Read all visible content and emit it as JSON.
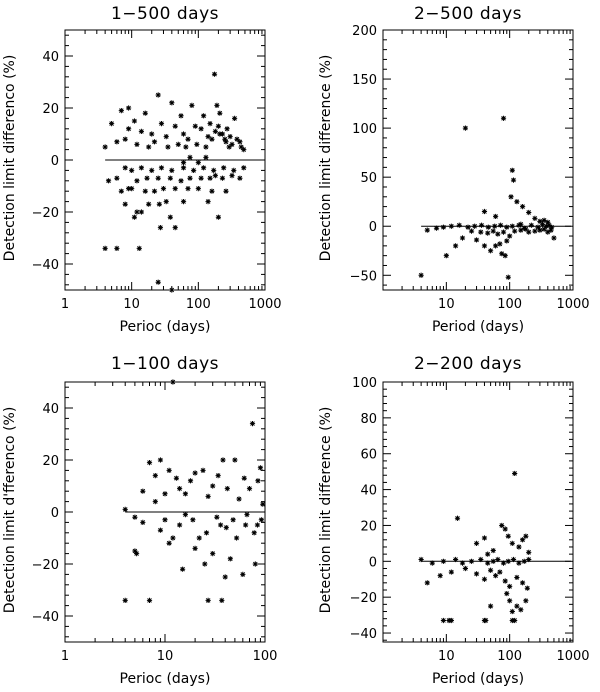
{
  "chart_data": [
    {
      "type": "scatter",
      "title": "1−500 days",
      "xlabel": "Perioc (days)",
      "ylabel": "Detection limit differenco (%)",
      "xscale": "log",
      "xlim": [
        1,
        1000
      ],
      "ylim": [
        -50,
        50
      ],
      "xticks": [
        1,
        10,
        100,
        1000
      ],
      "xtick_labels": [
        "1",
        "10",
        "100",
        "1000"
      ],
      "yticks": [
        -40,
        -20,
        0,
        20,
        40
      ],
      "ytick_labels": [
        "−40",
        "−20",
        "0",
        "20",
        "40"
      ],
      "points": [
        [
          4,
          -34
        ],
        [
          6,
          -34
        ],
        [
          13,
          -34
        ],
        [
          25,
          -47
        ],
        [
          40,
          -50
        ],
        [
          27,
          -26
        ],
        [
          38,
          -22
        ],
        [
          45,
          -26
        ],
        [
          200,
          -22
        ],
        [
          11,
          -22
        ],
        [
          12,
          -20
        ],
        [
          14,
          -20
        ],
        [
          8,
          -17
        ],
        [
          18,
          -17
        ],
        [
          26,
          -17
        ],
        [
          33,
          -16
        ],
        [
          60,
          -16
        ],
        [
          140,
          -16
        ],
        [
          7,
          -12
        ],
        [
          9,
          -11
        ],
        [
          10,
          -11
        ],
        [
          16,
          -12
        ],
        [
          22,
          -12
        ],
        [
          30,
          -11
        ],
        [
          45,
          -11
        ],
        [
          70,
          -11
        ],
        [
          100,
          -11
        ],
        [
          160,
          -12
        ],
        [
          260,
          -12
        ],
        [
          4.5,
          -8
        ],
        [
          6,
          -7
        ],
        [
          12,
          -8
        ],
        [
          17,
          -7
        ],
        [
          25,
          -7
        ],
        [
          38,
          -7
        ],
        [
          55,
          -8
        ],
        [
          75,
          -7
        ],
        [
          110,
          -7
        ],
        [
          150,
          -7
        ],
        [
          180,
          -6
        ],
        [
          230,
          -7
        ],
        [
          320,
          -6
        ],
        [
          420,
          -7
        ],
        [
          8,
          -3
        ],
        [
          10,
          -4
        ],
        [
          14,
          -3
        ],
        [
          20,
          -4
        ],
        [
          28,
          -3
        ],
        [
          40,
          -4
        ],
        [
          60,
          -3
        ],
        [
          85,
          -4
        ],
        [
          120,
          -3
        ],
        [
          170,
          -4
        ],
        [
          240,
          -3
        ],
        [
          340,
          -4
        ],
        [
          480,
          -3
        ],
        [
          4,
          5
        ],
        [
          6,
          7
        ],
        [
          8,
          8
        ],
        [
          9,
          12
        ],
        [
          11,
          15
        ],
        [
          14,
          11
        ],
        [
          16,
          18
        ],
        [
          20,
          10
        ],
        [
          25,
          25
        ],
        [
          28,
          14
        ],
        [
          33,
          9
        ],
        [
          40,
          22
        ],
        [
          45,
          13
        ],
        [
          55,
          17
        ],
        [
          60,
          10
        ],
        [
          70,
          8
        ],
        [
          80,
          21
        ],
        [
          90,
          13
        ],
        [
          110,
          12
        ],
        [
          120,
          17
        ],
        [
          140,
          9
        ],
        [
          150,
          14
        ],
        [
          160,
          8
        ],
        [
          180,
          11
        ],
        [
          190,
          21
        ],
        [
          200,
          13
        ],
        [
          210,
          18
        ],
        [
          230,
          10
        ],
        [
          250,
          8
        ],
        [
          270,
          12
        ],
        [
          300,
          9
        ],
        [
          350,
          16
        ],
        [
          420,
          7
        ],
        [
          480,
          4
        ],
        [
          5,
          14
        ],
        [
          7,
          19
        ],
        [
          9,
          20
        ],
        [
          12,
          6
        ],
        [
          18,
          5
        ],
        [
          22,
          7
        ],
        [
          35,
          5
        ],
        [
          50,
          6
        ],
        [
          65,
          5
        ],
        [
          95,
          6
        ],
        [
          130,
          5
        ],
        [
          175,
          33
        ],
        [
          210,
          10
        ],
        [
          260,
          7
        ],
        [
          290,
          5
        ],
        [
          320,
          6
        ],
        [
          380,
          8
        ],
        [
          440,
          5
        ],
        [
          60,
          -1
        ],
        [
          75,
          1
        ],
        [
          100,
          -1
        ],
        [
          130,
          1
        ]
      ]
    },
    {
      "type": "scatter",
      "title": "2−500 days",
      "xlabel": "Period (days)",
      "ylabel": "Detection limit difference (%)",
      "xscale": "log",
      "xlim": [
        1,
        1000
      ],
      "ylim": [
        -65,
        200
      ],
      "xticks": [
        10,
        100,
        1000
      ],
      "xtick_labels": [
        "10",
        "100",
        "1000"
      ],
      "yticks": [
        -50,
        0,
        50,
        100,
        150,
        200
      ],
      "ytick_labels": [
        "−50",
        "0",
        "50",
        "100",
        "150",
        "200"
      ],
      "points": [
        [
          4,
          -50
        ],
        [
          20,
          100
        ],
        [
          80,
          110
        ],
        [
          110,
          57
        ],
        [
          115,
          47
        ],
        [
          105,
          30
        ],
        [
          60,
          10
        ],
        [
          40,
          15
        ],
        [
          90,
          -15
        ],
        [
          100,
          -10
        ],
        [
          95,
          -52
        ],
        [
          85,
          -30
        ],
        [
          75,
          -28
        ],
        [
          50,
          -25
        ],
        [
          60,
          -20
        ],
        [
          70,
          -18
        ],
        [
          40,
          -20
        ],
        [
          30,
          -14
        ],
        [
          10,
          -30
        ],
        [
          14,
          -20
        ],
        [
          18,
          -12
        ],
        [
          25,
          -5
        ],
        [
          35,
          -6
        ],
        [
          45,
          -7
        ],
        [
          55,
          -5
        ],
        [
          65,
          -8
        ],
        [
          80,
          -6
        ],
        [
          120,
          -5
        ],
        [
          150,
          -4
        ],
        [
          180,
          -3
        ],
        [
          200,
          -6
        ],
        [
          250,
          -5
        ],
        [
          300,
          -4
        ],
        [
          350,
          -3
        ],
        [
          400,
          -6
        ],
        [
          450,
          -4
        ],
        [
          500,
          -12
        ],
        [
          130,
          25
        ],
        [
          160,
          20
        ],
        [
          200,
          14
        ],
        [
          250,
          8
        ],
        [
          300,
          5
        ],
        [
          350,
          6
        ],
        [
          400,
          4
        ],
        [
          150,
          2
        ],
        [
          170,
          -2
        ],
        [
          220,
          1
        ],
        [
          280,
          -1
        ],
        [
          330,
          2
        ],
        [
          380,
          0
        ],
        [
          420,
          1
        ],
        [
          460,
          -1
        ],
        [
          5,
          -4
        ],
        [
          7,
          -2
        ],
        [
          9,
          -1
        ],
        [
          12,
          0
        ],
        [
          16,
          1
        ],
        [
          22,
          -1
        ],
        [
          28,
          0
        ],
        [
          36,
          1
        ],
        [
          46,
          -1
        ],
        [
          58,
          0
        ],
        [
          72,
          1
        ],
        [
          90,
          -1
        ],
        [
          110,
          0
        ],
        [
          140,
          1
        ]
      ]
    },
    {
      "type": "scatter",
      "title": "1−100 days",
      "xlabel": "Perioc (days)",
      "ylabel": "Detection limit d'fferenco (%)",
      "xscale": "log",
      "xlim": [
        1,
        100
      ],
      "ylim": [
        -50,
        50
      ],
      "xticks": [
        1,
        10,
        100
      ],
      "xtick_labels": [
        "1",
        "10",
        "100"
      ],
      "yticks": [
        -40,
        -20,
        0,
        20,
        40
      ],
      "ytick_labels": [
        "−40",
        "−20",
        "0",
        "20",
        "40"
      ],
      "points": [
        [
          4,
          -34
        ],
        [
          7,
          -34
        ],
        [
          27,
          -34
        ],
        [
          37,
          -34
        ],
        [
          5,
          -15
        ],
        [
          5.2,
          -16
        ],
        [
          15,
          -22
        ],
        [
          25,
          -20
        ],
        [
          40,
          -25
        ],
        [
          60,
          -24
        ],
        [
          80,
          -20
        ],
        [
          45,
          -18
        ],
        [
          30,
          -16
        ],
        [
          20,
          -14
        ],
        [
          12,
          -10
        ],
        [
          9,
          -7
        ],
        [
          6,
          -4
        ],
        [
          5,
          -2
        ],
        [
          4,
          1
        ],
        [
          8,
          4
        ],
        [
          10,
          7
        ],
        [
          14,
          9
        ],
        [
          18,
          12
        ],
        [
          24,
          16
        ],
        [
          30,
          10
        ],
        [
          38,
          20
        ],
        [
          50,
          20
        ],
        [
          62,
          13
        ],
        [
          75,
          34
        ],
        [
          90,
          17
        ],
        [
          95,
          3
        ],
        [
          6,
          8
        ],
        [
          8,
          14
        ],
        [
          7,
          19
        ],
        [
          9,
          20
        ],
        [
          11,
          16
        ],
        [
          13,
          13
        ],
        [
          16,
          7
        ],
        [
          20,
          15
        ],
        [
          27,
          6
        ],
        [
          34,
          14
        ],
        [
          42,
          9
        ],
        [
          55,
          5
        ],
        [
          70,
          9
        ],
        [
          85,
          12
        ],
        [
          11,
          -12
        ],
        [
          14,
          -5
        ],
        [
          19,
          -3
        ],
        [
          26,
          -8
        ],
        [
          33,
          -2
        ],
        [
          41,
          -6
        ],
        [
          52,
          -10
        ],
        [
          64,
          -5
        ],
        [
          78,
          -8
        ],
        [
          92,
          -3
        ],
        [
          12,
          50
        ],
        [
          10,
          -3
        ],
        [
          16,
          -1
        ],
        [
          22,
          -10
        ],
        [
          36,
          -5
        ],
        [
          48,
          -3
        ],
        [
          66,
          -1
        ],
        [
          84,
          -5
        ]
      ]
    },
    {
      "type": "scatter",
      "title": "2−200 days",
      "xlabel": "Period (days)",
      "ylabel": "Detection limit difference (%)",
      "xscale": "log",
      "xlim": [
        1,
        1000
      ],
      "ylim": [
        -45,
        100
      ],
      "xticks": [
        10,
        100,
        1000
      ],
      "xtick_labels": [
        "10",
        "100",
        "1000"
      ],
      "yticks": [
        -40,
        -20,
        0,
        20,
        40,
        60,
        80,
        100
      ],
      "ytick_labels": [
        "−40",
        "−20",
        "0",
        "20",
        "40",
        "60",
        "80",
        "100"
      ],
      "points": [
        [
          9,
          -33
        ],
        [
          11,
          -33
        ],
        [
          12,
          -33
        ],
        [
          40,
          -33
        ],
        [
          42,
          -33
        ],
        [
          110,
          -33
        ],
        [
          120,
          -33
        ],
        [
          50,
          -25
        ],
        [
          90,
          -18
        ],
        [
          100,
          -22
        ],
        [
          110,
          -28
        ],
        [
          130,
          -25
        ],
        [
          150,
          -27
        ],
        [
          180,
          -22
        ],
        [
          5,
          -12
        ],
        [
          8,
          -8
        ],
        [
          12,
          -6
        ],
        [
          20,
          -4
        ],
        [
          30,
          -7
        ],
        [
          40,
          -10
        ],
        [
          50,
          -5
        ],
        [
          60,
          -8
        ],
        [
          70,
          -6
        ],
        [
          85,
          -11
        ],
        [
          100,
          -14
        ],
        [
          130,
          -9
        ],
        [
          160,
          -12
        ],
        [
          190,
          -15
        ],
        [
          4,
          1
        ],
        [
          6,
          -1
        ],
        [
          9,
          0
        ],
        [
          14,
          1
        ],
        [
          18,
          -1
        ],
        [
          25,
          0
        ],
        [
          35,
          1
        ],
        [
          45,
          -1
        ],
        [
          55,
          0
        ],
        [
          65,
          1
        ],
        [
          80,
          -1
        ],
        [
          95,
          0
        ],
        [
          115,
          1
        ],
        [
          140,
          -1
        ],
        [
          170,
          0
        ],
        [
          200,
          1
        ],
        [
          15,
          24
        ],
        [
          30,
          10
        ],
        [
          40,
          13
        ],
        [
          45,
          4
        ],
        [
          55,
          6
        ],
        [
          75,
          20
        ],
        [
          85,
          18
        ],
        [
          95,
          14
        ],
        [
          110,
          10
        ],
        [
          120,
          49
        ],
        [
          140,
          8
        ],
        [
          160,
          12
        ],
        [
          180,
          14
        ],
        [
          200,
          5
        ]
      ]
    }
  ]
}
